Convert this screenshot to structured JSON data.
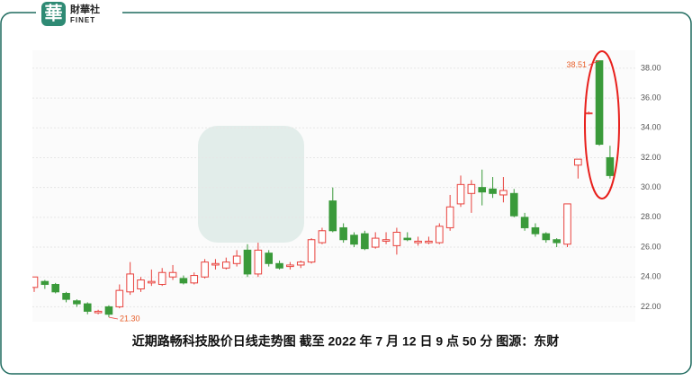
{
  "header": {
    "logo_char": "華",
    "brand": "財華社",
    "brand_en": "FINET"
  },
  "chart_data": {
    "type": "candlestick",
    "caption": "近期路畅科技股价日线走势图  截至 2022 年 7 月 12 日 9 点 50 分  图源：东财",
    "up_color": "#e8413c",
    "down_color": "#3a9a3a",
    "open": [
      23.3,
      23.7,
      23.5,
      22.9,
      22.4,
      22.2,
      21.6,
      22.0,
      22.0,
      23.0,
      23.2,
      23.6,
      23.5,
      24.0,
      23.9,
      23.6,
      24.0,
      24.8,
      24.6,
      24.9,
      25.8,
      24.2,
      25.6,
      24.9,
      24.7,
      24.8,
      25.0,
      26.3,
      29.1,
      27.3,
      26.8,
      26.9,
      26.0,
      26.4,
      26.1,
      26.6,
      26.3,
      26.3,
      26.3,
      27.3,
      28.9,
      29.6,
      30.0,
      29.9,
      29.5,
      29.6,
      28.0,
      27.3,
      26.9,
      26.5,
      26.2,
      31.5,
      35.0,
      38.5,
      32.0
    ],
    "high": [
      24.0,
      23.8,
      23.6,
      23.0,
      22.5,
      22.3,
      21.8,
      22.1,
      23.5,
      25.0,
      24.0,
      24.5,
      24.6,
      24.8,
      24.1,
      24.3,
      25.2,
      25.2,
      25.3,
      25.8,
      26.2,
      26.3,
      25.8,
      25.1,
      25.0,
      25.1,
      26.6,
      27.3,
      30.0,
      27.6,
      27.0,
      27.1,
      27.0,
      27.0,
      27.3,
      27.0,
      26.7,
      26.7,
      27.6,
      29.5,
      30.8,
      30.5,
      31.2,
      30.7,
      30.7,
      29.9,
      28.3,
      27.6,
      27.0,
      26.6,
      28.9,
      31.9,
      35.1,
      38.51,
      32.8
    ],
    "low": [
      23.0,
      23.2,
      22.9,
      22.3,
      22.0,
      21.5,
      21.5,
      21.3,
      21.9,
      22.8,
      23.0,
      23.4,
      23.4,
      23.8,
      23.5,
      23.5,
      23.9,
      24.5,
      24.5,
      24.7,
      24.0,
      24.0,
      24.7,
      24.5,
      24.5,
      24.6,
      24.9,
      26.2,
      27.0,
      26.3,
      26.0,
      25.8,
      25.9,
      26.2,
      25.5,
      26.4,
      26.1,
      26.2,
      26.2,
      27.1,
      28.7,
      28.3,
      28.8,
      29.3,
      29.0,
      28.0,
      27.1,
      26.7,
      26.3,
      26.0,
      26.0,
      30.6,
      34.9,
      32.8,
      30.6
    ],
    "close": [
      24.0,
      23.5,
      23.0,
      22.5,
      22.2,
      21.7,
      21.7,
      21.5,
      23.1,
      24.2,
      23.8,
      23.7,
      24.3,
      24.3,
      23.6,
      24.1,
      25.0,
      24.9,
      25.0,
      25.4,
      24.2,
      25.8,
      24.9,
      24.6,
      24.8,
      25.0,
      26.5,
      27.1,
      27.1,
      26.5,
      26.2,
      25.9,
      26.6,
      26.5,
      27.0,
      26.5,
      26.4,
      26.4,
      27.4,
      28.7,
      30.2,
      30.2,
      29.7,
      29.6,
      29.8,
      28.1,
      27.3,
      26.9,
      26.5,
      26.3,
      28.9,
      31.9,
      35.0,
      32.9,
      30.8
    ],
    "ylim": [
      21,
      39.2
    ],
    "yticks": [
      {
        "value": 22,
        "label": "22.00"
      },
      {
        "value": 24,
        "label": "24.00"
      },
      {
        "value": 26,
        "label": "26.00"
      },
      {
        "value": 28,
        "label": "28.00"
      },
      {
        "value": 30,
        "label": "30.00"
      },
      {
        "value": 32,
        "label": "32.00"
      },
      {
        "value": 34,
        "label": "34.00"
      },
      {
        "value": 36,
        "label": "36.00"
      },
      {
        "value": 38,
        "label": "38.00"
      }
    ],
    "annotations": [
      {
        "text": "38.51",
        "value": 38.51,
        "index": 53
      },
      {
        "text": "21.30",
        "value": 21.3,
        "index": 7
      }
    ],
    "grid": true
  }
}
